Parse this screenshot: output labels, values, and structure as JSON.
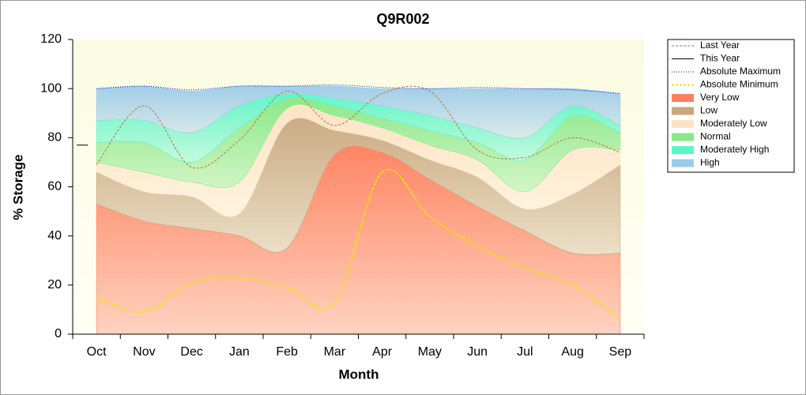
{
  "chart_data": {
    "type": "area",
    "title": "Q9R002",
    "x_label": "Month",
    "y_label": "% Storage",
    "categories": [
      "Oct",
      "Nov",
      "Dec",
      "Jan",
      "Feb",
      "Mar",
      "Apr",
      "May",
      "Jun",
      "Jul",
      "Aug",
      "Sep"
    ],
    "ylim": [
      0,
      120
    ],
    "yticks": [
      0,
      20,
      40,
      60,
      80,
      100,
      120
    ],
    "grid": false,
    "legend": "right",
    "series": [
      {
        "name": "Last Year",
        "type": "line",
        "dash": "dashed",
        "color": "#b8703a",
        "values": [
          69,
          93,
          68,
          79,
          99,
          85,
          98,
          99,
          75,
          72,
          80,
          74
        ]
      },
      {
        "name": "This Year",
        "type": "line",
        "dash": "solid",
        "color": "#000000",
        "values": [
          77,
          null,
          null,
          null,
          null,
          null,
          null,
          null,
          null,
          null,
          null,
          null
        ]
      },
      {
        "name": "Absolute Maximum",
        "type": "line",
        "dash": "dotted",
        "color": "#0000cc",
        "values": [
          100,
          101,
          99.5,
          101,
          101,
          101.5,
          100.5,
          100,
          100.5,
          100,
          99.5,
          98
        ]
      },
      {
        "name": "Absolute Minimum",
        "type": "line",
        "dash": "dashed",
        "color": "#f2e600",
        "values": [
          15,
          9,
          21,
          23,
          19,
          13,
          66,
          48,
          36,
          27,
          20,
          6
        ]
      },
      {
        "name": "Very Low",
        "type": "area",
        "color": "#ff7f5e",
        "values": [
          53,
          46,
          43,
          40,
          35,
          73,
          74,
          63,
          52,
          42,
          33,
          33
        ]
      },
      {
        "name": "Low",
        "type": "area",
        "color": "#c9a77f",
        "values": [
          13,
          12,
          13,
          9,
          51,
          10,
          5,
          8,
          12,
          9,
          24,
          36
        ]
      },
      {
        "name": "Moderately Low",
        "type": "area",
        "color": "#ffe2c4",
        "values": [
          4,
          8,
          6,
          13,
          6,
          6,
          5,
          6,
          7,
          7,
          18,
          6
        ]
      },
      {
        "name": "Normal",
        "type": "area",
        "color": "#86e886",
        "values": [
          8,
          12,
          8,
          22,
          4,
          4,
          4,
          6,
          7,
          13,
          14,
          7
        ]
      },
      {
        "name": "Moderately High",
        "type": "area",
        "color": "#5cf5c8",
        "values": [
          9,
          9,
          12,
          9,
          2,
          3,
          5,
          6,
          6,
          9,
          4,
          3
        ]
      },
      {
        "name": "High",
        "type": "area",
        "color": "#9ccbe8",
        "values": [
          13,
          14,
          17,
          8,
          3,
          5,
          7,
          11,
          16,
          20,
          7,
          13
        ]
      }
    ]
  }
}
